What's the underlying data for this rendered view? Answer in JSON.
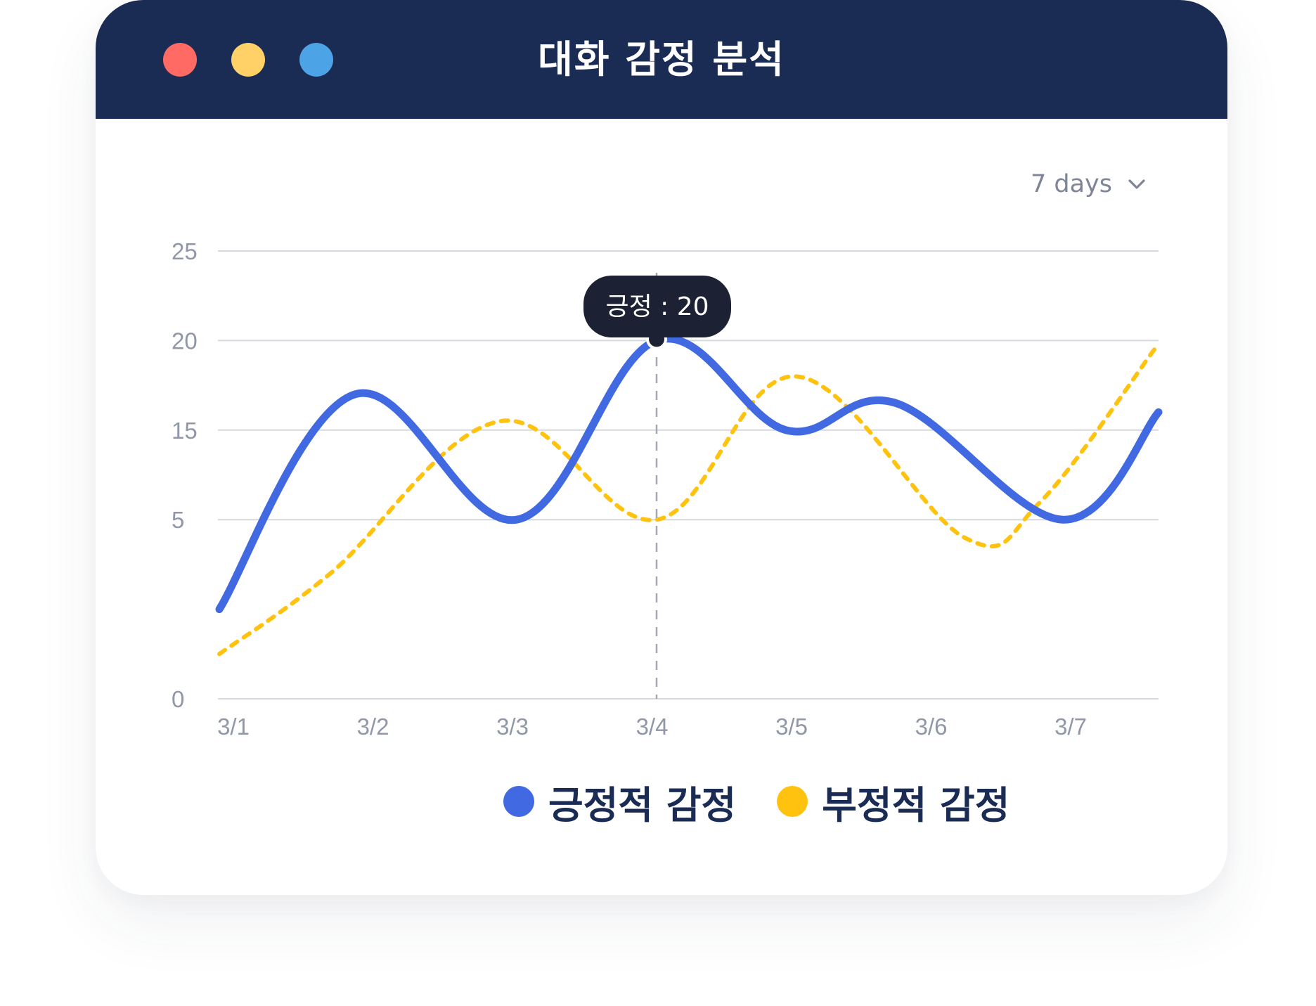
{
  "window": {
    "title": "대화 감정 분석",
    "controls": [
      {
        "name": "close",
        "color": "#ff6b64"
      },
      {
        "name": "minimize",
        "color": "#ffd166"
      },
      {
        "name": "maximize",
        "color": "#4ca3e6"
      }
    ]
  },
  "range_select": {
    "label": "7 days",
    "icon": "chevron-down-icon"
  },
  "colors": {
    "titlebar": "#1a2b54",
    "positive": "#4169e1",
    "negative": "#ffc20e",
    "tooltip": "#1c2233",
    "gridline": "#d5d8de",
    "axis_text": "#9097a6"
  },
  "chart_data": {
    "type": "line",
    "title": "",
    "xlabel": "",
    "ylabel": "",
    "categories": [
      "3/1",
      "3/2",
      "3/3",
      "3/4",
      "3/5",
      "3/6",
      "3/7"
    ],
    "yticks": [
      0,
      5,
      15,
      20,
      25
    ],
    "ylim": [
      0,
      25
    ],
    "grid": true,
    "legend_position": "bottom-center",
    "series": [
      {
        "name": "긍정적 감정",
        "style": "solid",
        "color": "#4169e1",
        "points": [
          {
            "x": "3/1",
            "y": 5
          },
          {
            "x": "3/1.9",
            "y": 17
          },
          {
            "x": "3/3",
            "y": 10
          },
          {
            "x": "3/4",
            "y": 20
          },
          {
            "x": "3/5",
            "y": 15
          },
          {
            "x": "3/6",
            "y": 16.5
          },
          {
            "x": "3/7",
            "y": 10
          },
          {
            "x": "end",
            "y": 16
          }
        ],
        "values": [
          5,
          17,
          10,
          20,
          15,
          16.5,
          10
        ]
      },
      {
        "name": "부정적 감정",
        "style": "dashed",
        "color": "#ffc20e",
        "values": [
          2.5,
          7,
          15.5,
          10,
          18,
          9,
          11
        ],
        "end_value": 19.5
      }
    ],
    "tooltip": {
      "x": "3/4",
      "series": "긍정적 감정",
      "text": "긍정 : 20",
      "value": 20
    }
  },
  "legend": {
    "items": [
      {
        "label": "긍정적 감정",
        "color": "#4169e1"
      },
      {
        "label": "부정적 감정",
        "color": "#ffc20e"
      }
    ]
  }
}
